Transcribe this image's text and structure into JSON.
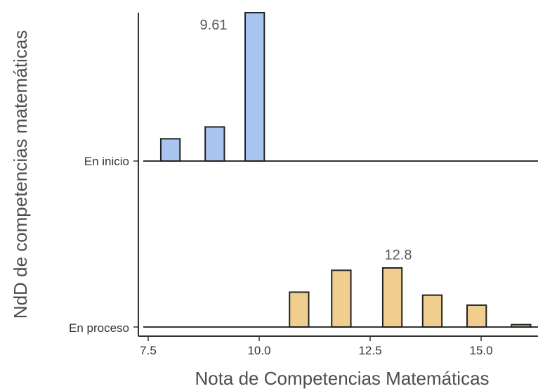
{
  "chart_data": {
    "type": "ridgeline-histogram",
    "xlabel": "Nota de Competencias Matemáticas",
    "ylabel": "NdD de competencias matemáticas",
    "xlim": [
      7.25,
      17.2
    ],
    "x_ticks": [
      7.5,
      10.0,
      12.5,
      15.0
    ],
    "x_tick_labels": [
      "7.5",
      "10.0",
      "12.5",
      "15.0"
    ],
    "grid": false,
    "bin_width": 0.96,
    "groups": [
      {
        "name": "En inicio",
        "color": "#a9c4ee",
        "bins": [
          {
            "x": 8.0,
            "height": 0.15
          },
          {
            "x": 9.0,
            "height": 0.23
          },
          {
            "x": 9.9,
            "height": 1.0
          }
        ],
        "annotation": "9.61"
      },
      {
        "name": "En proceso",
        "color": "#f0cf8e",
        "bins": [
          {
            "x": 10.9,
            "height": 0.59
          },
          {
            "x": 11.85,
            "height": 0.96
          },
          {
            "x": 13.0,
            "height": 1.0
          },
          {
            "x": 13.9,
            "height": 0.54
          },
          {
            "x": 14.9,
            "height": 0.37
          },
          {
            "x": 15.9,
            "height": 0.04
          }
        ],
        "annotation": "12.8"
      }
    ]
  }
}
